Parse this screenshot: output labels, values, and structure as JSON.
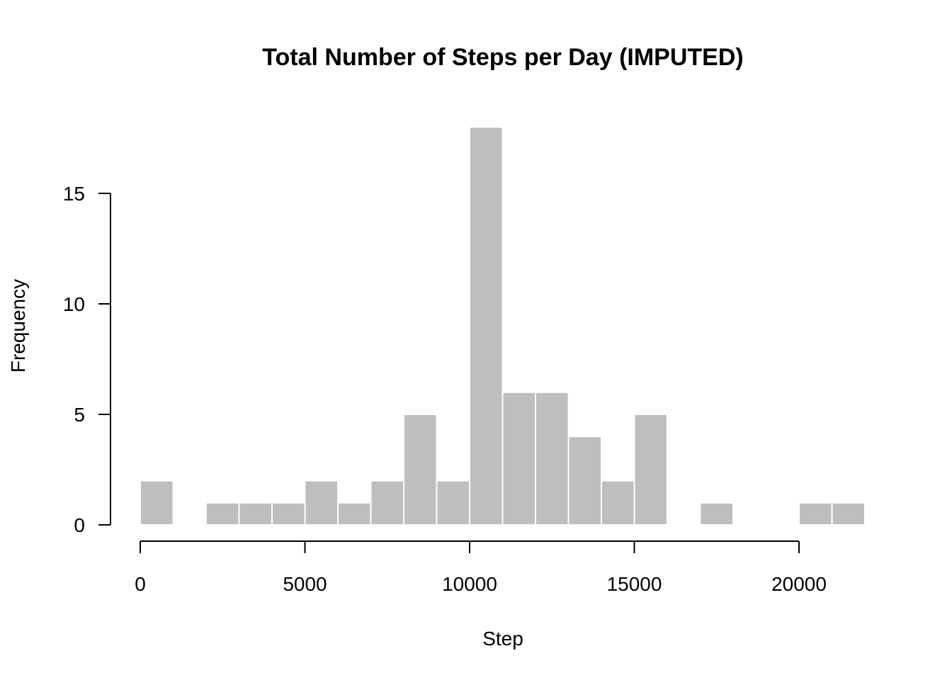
{
  "chart_data": {
    "type": "bar",
    "title": "Total Number of Steps per Day (IMPUTED)",
    "xlabel": "Step",
    "ylabel": "Frequency",
    "bin_width": 1000,
    "bins": [
      {
        "start": 0,
        "end": 1000,
        "count": 2
      },
      {
        "start": 1000,
        "end": 2000,
        "count": 0
      },
      {
        "start": 2000,
        "end": 3000,
        "count": 1
      },
      {
        "start": 3000,
        "end": 4000,
        "count": 1
      },
      {
        "start": 4000,
        "end": 5000,
        "count": 1
      },
      {
        "start": 5000,
        "end": 6000,
        "count": 2
      },
      {
        "start": 6000,
        "end": 7000,
        "count": 1
      },
      {
        "start": 7000,
        "end": 8000,
        "count": 2
      },
      {
        "start": 8000,
        "end": 9000,
        "count": 5
      },
      {
        "start": 9000,
        "end": 10000,
        "count": 2
      },
      {
        "start": 10000,
        "end": 11000,
        "count": 18
      },
      {
        "start": 11000,
        "end": 12000,
        "count": 6
      },
      {
        "start": 12000,
        "end": 13000,
        "count": 6
      },
      {
        "start": 13000,
        "end": 14000,
        "count": 4
      },
      {
        "start": 14000,
        "end": 15000,
        "count": 2
      },
      {
        "start": 15000,
        "end": 16000,
        "count": 5
      },
      {
        "start": 16000,
        "end": 17000,
        "count": 0
      },
      {
        "start": 17000,
        "end": 18000,
        "count": 1
      },
      {
        "start": 18000,
        "end": 19000,
        "count": 0
      },
      {
        "start": 19000,
        "end": 20000,
        "count": 0
      },
      {
        "start": 20000,
        "end": 21000,
        "count": 1
      },
      {
        "start": 21000,
        "end": 22000,
        "count": 1
      }
    ],
    "xlim": [
      0,
      22000
    ],
    "ylim": [
      0,
      18
    ],
    "x_ticks": [
      0,
      5000,
      10000,
      15000,
      20000
    ],
    "y_ticks": [
      0,
      5,
      10,
      15
    ],
    "x_tick_labels": [
      "0",
      "5000",
      "10000",
      "15000",
      "20000"
    ],
    "y_tick_labels": [
      "0",
      "5",
      "10",
      "15"
    ],
    "grid": false,
    "legend": "none",
    "colors": {
      "bar_fill": "#bebebe",
      "bar_border": "#ffffff",
      "axis": "#000000",
      "text": "#000000"
    }
  }
}
